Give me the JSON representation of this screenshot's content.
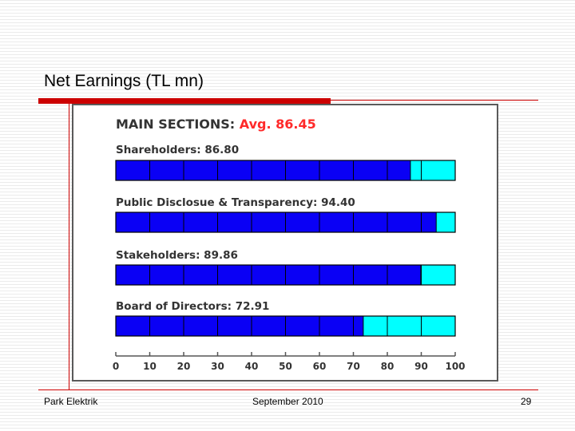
{
  "slide": {
    "title": "Net Earnings (TL mn)",
    "footer_left": "Park Elektrik",
    "footer_center": "September 2010",
    "page_number": "29"
  },
  "colors": {
    "filled": "#0a00f5",
    "remaining": "#00ffff",
    "accent": "#cc0000",
    "heading_text": "#333333",
    "avg_text": "#ff2a2a"
  },
  "chart_data": {
    "type": "bar",
    "orientation": "horizontal",
    "title": "MAIN SECTIONS:",
    "title_value": "Avg. 86.45",
    "categories": [
      "Shareholders",
      "Public Disclosue & Transparency",
      "Stakeholders",
      "Board of Directors"
    ],
    "labels": [
      "Shareholders: 86.80",
      "Public Disclosue & Transparency: 94.40",
      "Stakeholders: 89.86",
      "Board of Directors: 72.91"
    ],
    "values": [
      86.8,
      94.4,
      89.86,
      72.91
    ],
    "xlim": [
      0,
      100
    ],
    "xticks": [
      "0",
      "10",
      "20",
      "30",
      "40",
      "50",
      "60",
      "70",
      "80",
      "90",
      "100"
    ],
    "segment_step": 10,
    "grid": false,
    "legend": "none"
  }
}
